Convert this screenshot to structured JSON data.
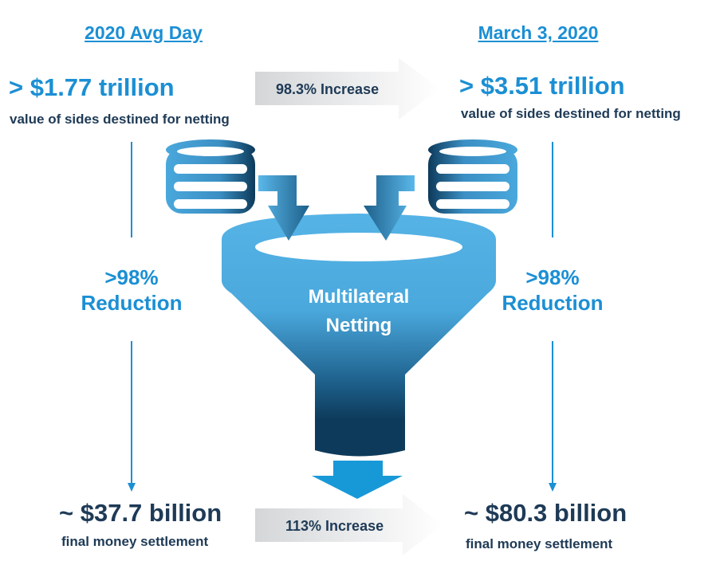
{
  "left": {
    "heading": "2020 Avg Day",
    "sides_value": "> $1.77 trillion",
    "sides_label": "value of sides destined for netting",
    "reduction_pct": ">98%",
    "reduction_label": "Reduction",
    "settlement_value": "~ $37.7 billion",
    "settlement_label": "final money settlement"
  },
  "right": {
    "heading": "March 3, 2020",
    "sides_value": "> $3.51 trillion",
    "sides_label": "value of sides destined for netting",
    "reduction_pct": ">98%",
    "reduction_label": "Reduction",
    "settlement_value": "~ $80.3 billion",
    "settlement_label": "final money settlement"
  },
  "top_arrow": {
    "label": "98.3% Increase"
  },
  "bottom_arrow": {
    "label": "113% Increase"
  },
  "funnel": {
    "line1": "Multilateral",
    "line2": "Netting"
  },
  "colors": {
    "accent": "#1b8fd4",
    "navy": "#1e3a56",
    "funnel_light": "#55b3e6",
    "funnel_dark": "#0d3a5a"
  }
}
